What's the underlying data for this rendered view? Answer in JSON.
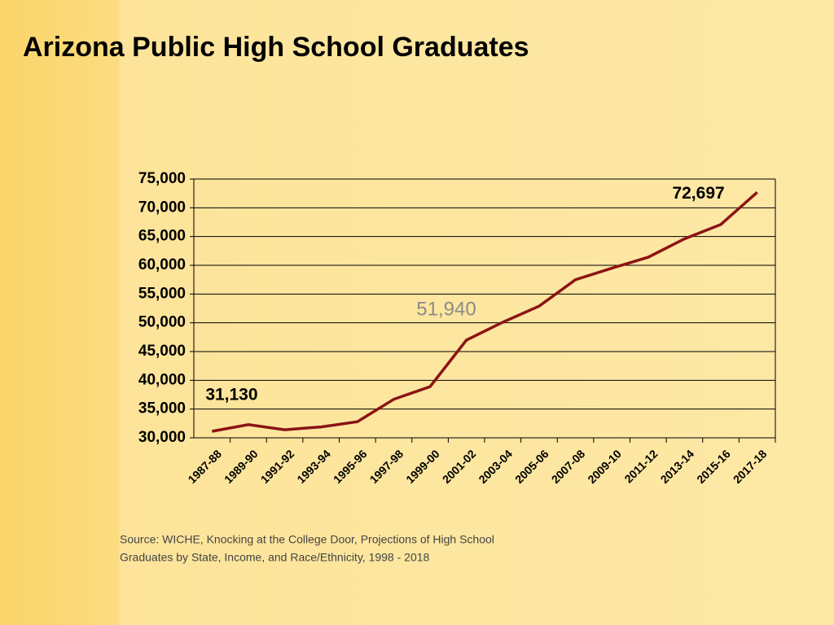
{
  "chart_data": {
    "type": "line",
    "title": "Arizona Public High School Graduates",
    "categories": [
      "1987-88",
      "1989-90",
      "1991-92",
      "1993-94",
      "1995-96",
      "1997-98",
      "1999-00",
      "2001-02",
      "2003-04",
      "2005-06",
      "2007-08",
      "2009-10",
      "2011-12",
      "2013-14",
      "2015-16",
      "2017-18"
    ],
    "series": [
      {
        "name": "Graduates",
        "color": "#8b1414",
        "values": [
          31130,
          32300,
          31400,
          31900,
          32800,
          36700,
          38900,
          47000,
          50100,
          52900,
          57500,
          59500,
          61400,
          64600,
          67100,
          72697
        ],
        "value_labels": [
          "31,130",
          null,
          null,
          null,
          null,
          null,
          null,
          null,
          null,
          null,
          null,
          null,
          null,
          null,
          null,
          "72,697"
        ]
      }
    ],
    "annotation": "51,940",
    "ylim": [
      30000,
      75000
    ],
    "yticks": [
      {
        "value": 30000,
        "label": "30,000"
      },
      {
        "value": 35000,
        "label": "35,000"
      },
      {
        "value": 40000,
        "label": "40,000"
      },
      {
        "value": 45000,
        "label": "45,000"
      },
      {
        "value": 50000,
        "label": "50,000"
      },
      {
        "value": 55000,
        "label": "55,000"
      },
      {
        "value": 60000,
        "label": "60,000"
      },
      {
        "value": 65000,
        "label": "65,000"
      },
      {
        "value": 70000,
        "label": "70,000"
      },
      {
        "value": 75000,
        "label": "75,000"
      }
    ],
    "grid": true,
    "source": [
      "Source: WICHE, Knocking at the College Door, Projections of High School",
      "Graduates by State, Income, and Race/Ethnicity, 1998 - 2018"
    ]
  }
}
